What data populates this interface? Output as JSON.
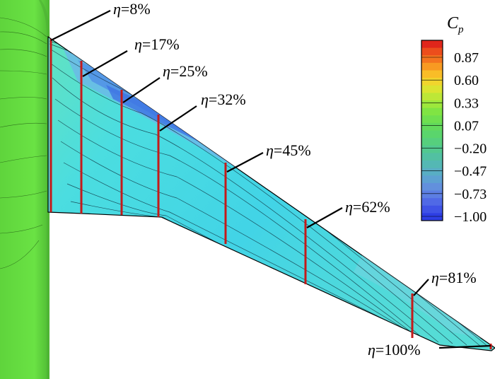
{
  "colorbar": {
    "title_main": "C",
    "title_sub": "p",
    "ticks": [
      "0.87",
      "0.60",
      "0.33",
      "0.07",
      "−0.20",
      "−0.47",
      "−0.73",
      "−1.00"
    ],
    "colors": [
      "#e0261b",
      "#ec4d1c",
      "#f4741f",
      "#f89a22",
      "#f9bd27",
      "#f1d52d",
      "#dbe431",
      "#bde737",
      "#9de73c",
      "#80e443",
      "#6fdf4f",
      "#62d95c",
      "#5ad56c",
      "#56cf7d",
      "#52c88f",
      "#52c0a2",
      "#54b8b4",
      "#58aec4",
      "#5da1d2",
      "#6290dd",
      "#5c7ee3",
      "#5069e6",
      "#3f53e6",
      "#2d3ee4"
    ]
  },
  "surface_colors": {
    "fuselage": "#66e141",
    "fuselage_edge": "#57c437",
    "wing_root": "#5fe0c4",
    "wing_mid": "#3fd7e3",
    "suction_peak": "#3f86e6",
    "section_line": "#c41a1a"
  },
  "stations": [
    {
      "eta_symbol": "η",
      "value": "=8%"
    },
    {
      "eta_symbol": "η",
      "value": "=17%"
    },
    {
      "eta_symbol": "η",
      "value": "=25%"
    },
    {
      "eta_symbol": "η",
      "value": "=32%"
    },
    {
      "eta_symbol": "η",
      "value": "=45%"
    },
    {
      "eta_symbol": "η",
      "value": "=62%"
    },
    {
      "eta_symbol": "η",
      "value": "=81%"
    },
    {
      "eta_symbol": "η",
      "value": "=100%"
    }
  ]
}
